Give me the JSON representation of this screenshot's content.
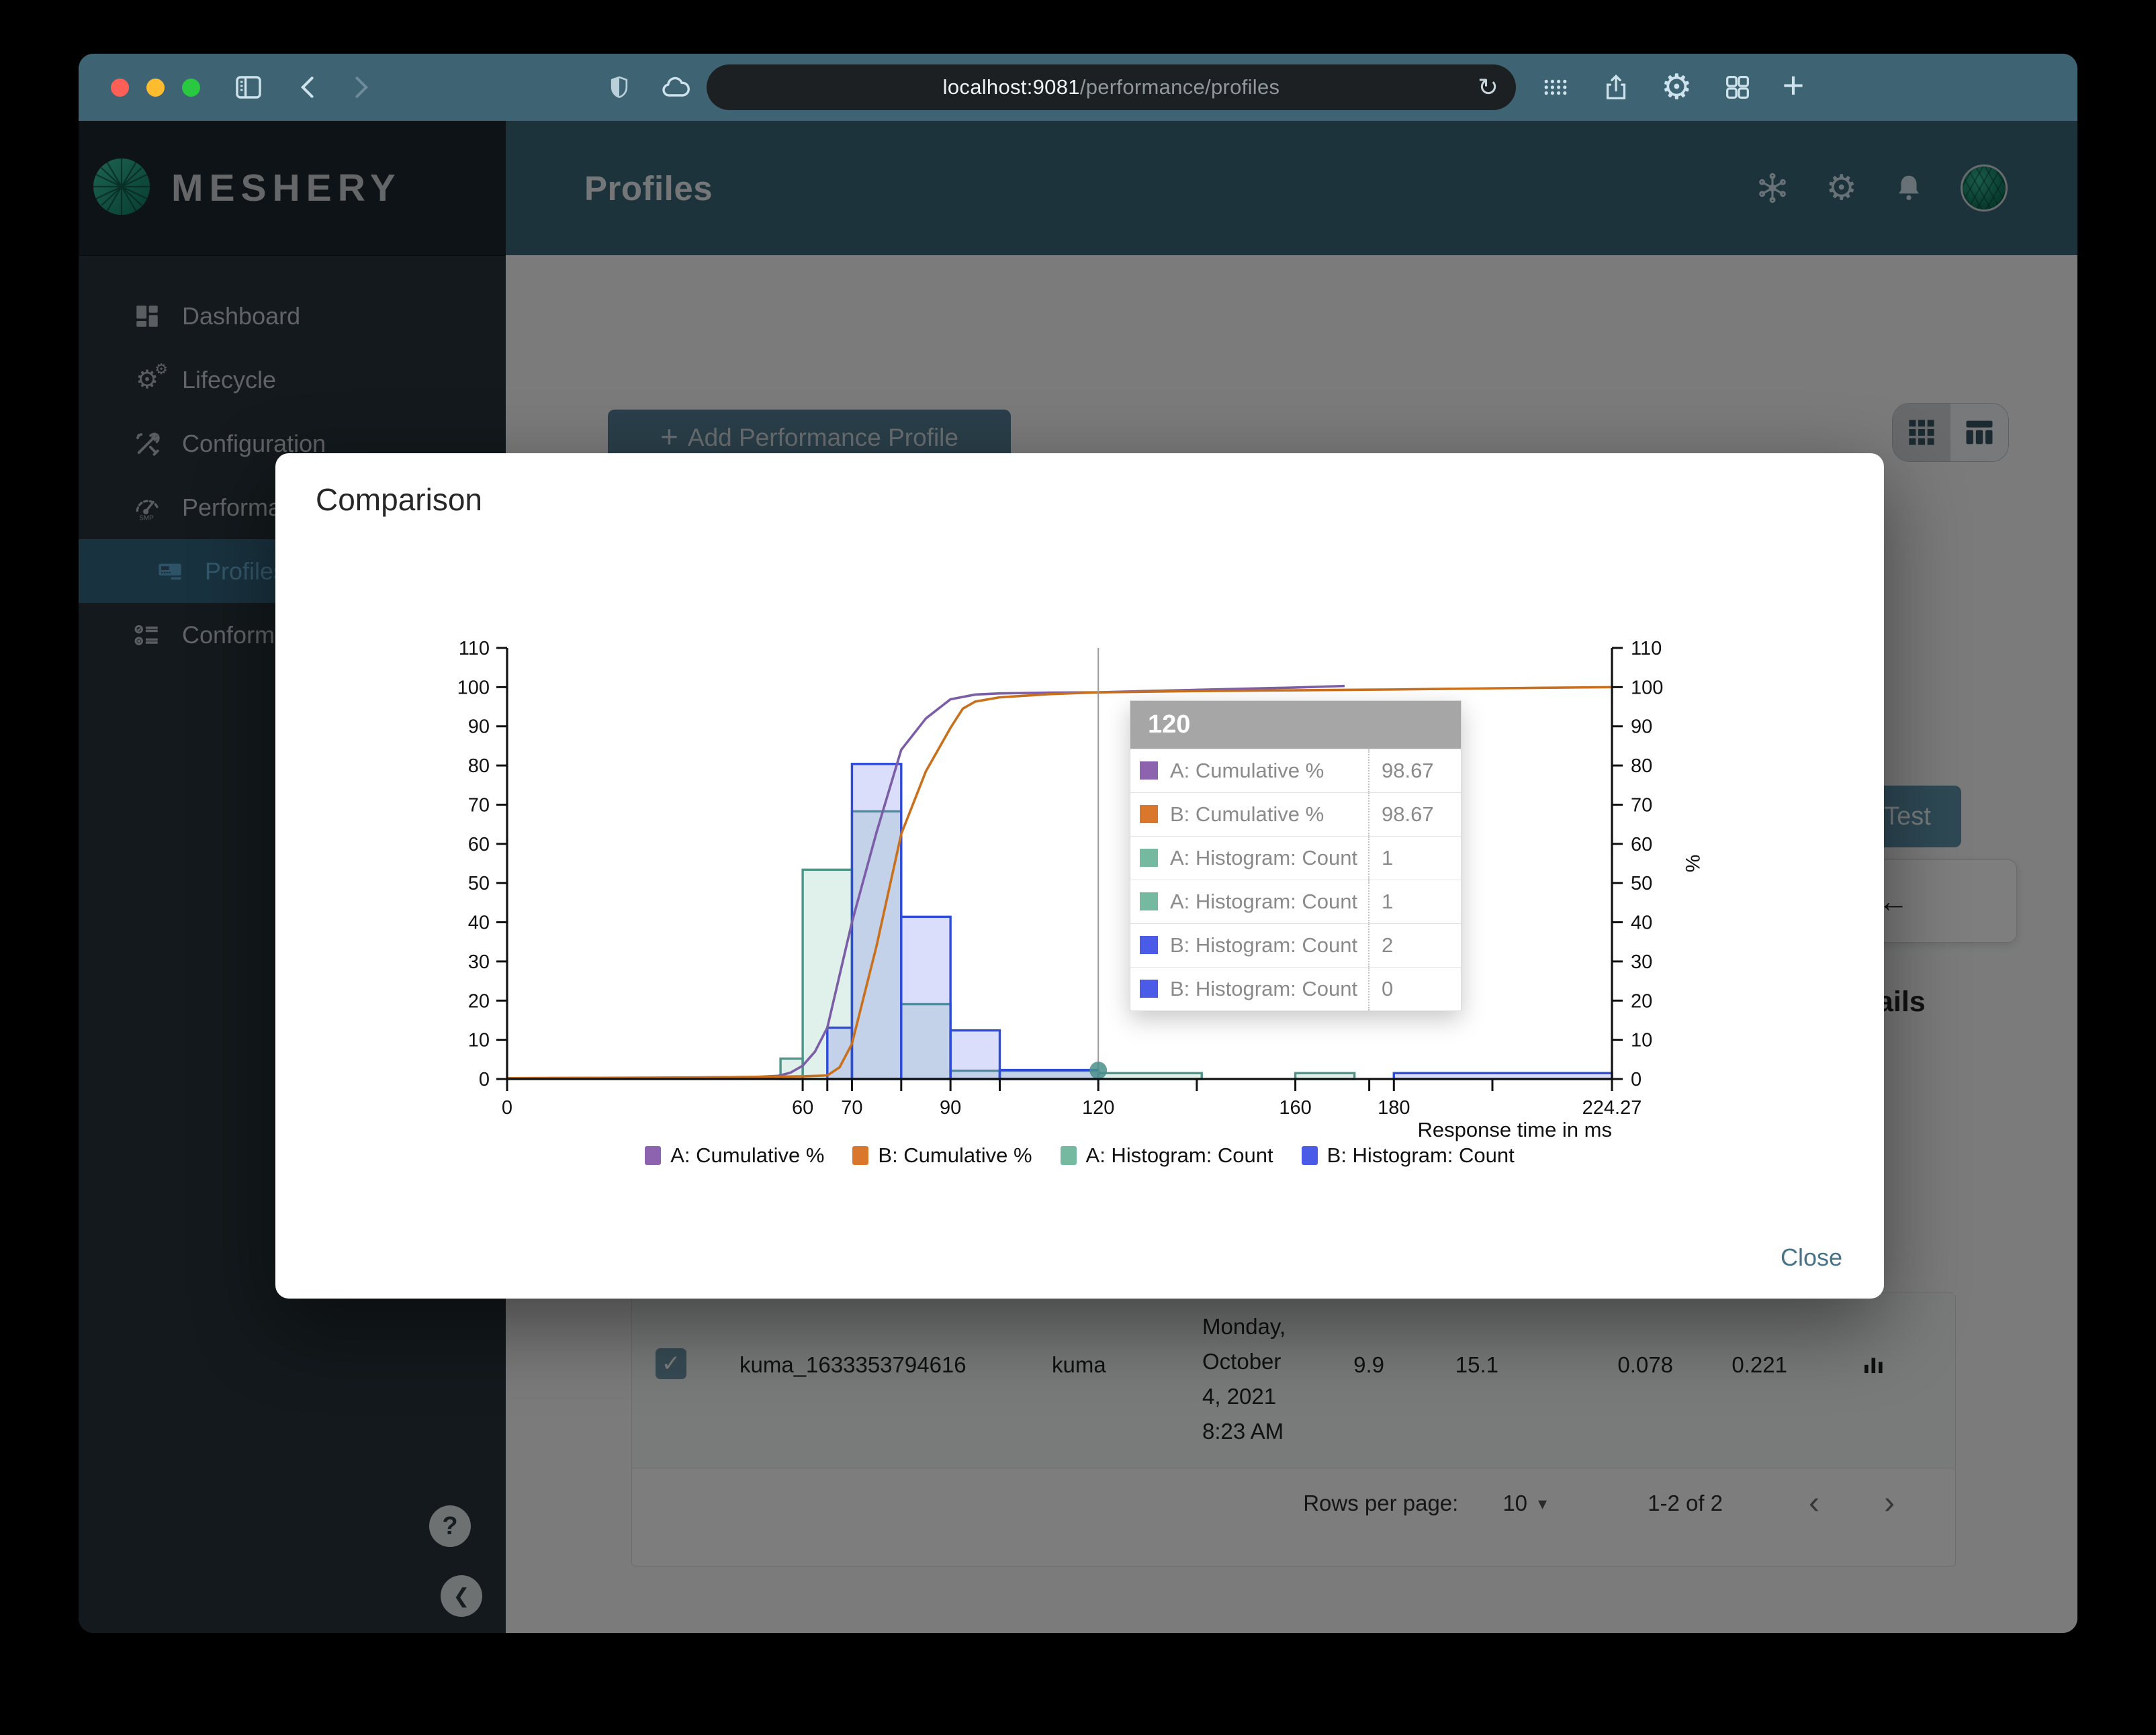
{
  "browser": {
    "url_host": "localhost:9081",
    "url_path": "/performance/profiles"
  },
  "sidebar": {
    "brand": "MESHERY",
    "items": [
      {
        "label": "Dashboard",
        "icon": "dashboard-icon",
        "active": false,
        "indent": false
      },
      {
        "label": "Lifecycle",
        "icon": "lifecycle-icon",
        "active": false,
        "indent": false
      },
      {
        "label": "Configuration",
        "icon": "configuration-icon",
        "active": false,
        "indent": false
      },
      {
        "label": "Performance",
        "icon": "performance-icon",
        "active": false,
        "indent": false
      },
      {
        "label": "Profiles",
        "icon": "profiles-icon",
        "active": true,
        "indent": true
      },
      {
        "label": "Conformance",
        "icon": "conformance-icon",
        "active": false,
        "indent": false
      }
    ],
    "help_glyph": "?",
    "collapse_glyph": "❮"
  },
  "header": {
    "title": "Profiles"
  },
  "page": {
    "add_plus": "+",
    "add_profile_button": "Add Performance Profile",
    "test_button": "Test",
    "back_arrow": "←",
    "details_fragment": "ails",
    "table_row": {
      "name": "kuma_1633353794616",
      "mesh": "kuma",
      "date_lines": [
        "Monday,",
        "October",
        "4, 2021",
        "8:23 AM"
      ],
      "qps": "9.9",
      "duration": "15.1",
      "p50": "0.078",
      "p99": "0.221"
    },
    "pagination": {
      "rows_per_page_label": "Rows per page:",
      "rows_per_page_value": "10",
      "caret": "▾",
      "range": "1-2 of 2",
      "prev": "‹",
      "next": "›"
    }
  },
  "modal": {
    "title": "Comparison",
    "close_label": "Close",
    "tooltip": {
      "header": "120",
      "rows": [
        {
          "color": "#8d62ae",
          "label": "A: Cumulative %",
          "value": "98.67"
        },
        {
          "color": "#d9782d",
          "label": "B: Cumulative %",
          "value": "98.67"
        },
        {
          "color": "#74b9a0",
          "label": "A: Histogram: Count",
          "value": "1"
        },
        {
          "color": "#74b9a0",
          "label": "A: Histogram: Count",
          "value": "1"
        },
        {
          "color": "#4a5be8",
          "label": "B: Histogram: Count",
          "value": "2"
        },
        {
          "color": "#4a5be8",
          "label": "B: Histogram: Count",
          "value": "0"
        }
      ]
    }
  },
  "chart_data": {
    "type": "histogram+cumulative-line",
    "xlabel": "Response time in ms",
    "right_axis_label": "%",
    "xlim": [
      0,
      224.27
    ],
    "ylim": [
      0,
      110
    ],
    "y_ticks": [
      0,
      10,
      20,
      30,
      40,
      50,
      60,
      70,
      80,
      90,
      100,
      110
    ],
    "x_ticks": [
      {
        "v": 0,
        "label": "0"
      },
      {
        "v": 60,
        "label": "60"
      },
      {
        "v": 70,
        "label": "70"
      },
      {
        "v": 90,
        "label": "90"
      },
      {
        "v": 120,
        "label": "120"
      },
      {
        "v": 160,
        "label": "160"
      },
      {
        "v": 180,
        "label": "180"
      },
      {
        "v": 224.27,
        "label": "224.27"
      }
    ],
    "x_minor_ticks": [
      65,
      80,
      100,
      140,
      175,
      200
    ],
    "crosshair_x": 120,
    "marker": {
      "x": 120,
      "y": 2.2,
      "color": "#4a8f8c"
    },
    "series": [
      {
        "name": "A: Histogram: Count",
        "type": "bars",
        "stroke": "#4e9489",
        "fill": "#74b9a0",
        "bars": [
          [
            55.5,
            60,
            5.2
          ],
          [
            60,
            70,
            53.4
          ],
          [
            70,
            80,
            68.3
          ],
          [
            80,
            90,
            19.1
          ],
          [
            90,
            100,
            2.1
          ],
          [
            100,
            120,
            2.1
          ],
          [
            120,
            141,
            1.5
          ],
          [
            160,
            172,
            1.5
          ]
        ]
      },
      {
        "name": "B: Histogram: Count",
        "type": "bars",
        "stroke": "#2e4cd8",
        "fill": "#5b6ae8",
        "bars": [
          [
            65,
            70,
            13.1
          ],
          [
            70,
            80,
            80.4
          ],
          [
            80,
            90,
            41.4
          ],
          [
            90,
            100,
            12.4
          ],
          [
            100,
            120,
            2.3
          ],
          [
            180,
            224.27,
            1.5
          ]
        ]
      },
      {
        "name": "A: Cumulative %",
        "type": "line",
        "color": "#7b5ea7",
        "points": [
          [
            0,
            0.2
          ],
          [
            30,
            0.3
          ],
          [
            50,
            0.5
          ],
          [
            55,
            0.8
          ],
          [
            57.5,
            1.6
          ],
          [
            60,
            3.4
          ],
          [
            62.5,
            7
          ],
          [
            65,
            13.1
          ],
          [
            70,
            40
          ],
          [
            75,
            63
          ],
          [
            80,
            84
          ],
          [
            85,
            92
          ],
          [
            90,
            96.9
          ],
          [
            95,
            98.1
          ],
          [
            100,
            98.4
          ],
          [
            110,
            98.6
          ],
          [
            120,
            98.67
          ],
          [
            130,
            99
          ],
          [
            140,
            99.3
          ],
          [
            150,
            99.6
          ],
          [
            160,
            99.9
          ],
          [
            170,
            100.3
          ]
        ]
      },
      {
        "name": "B: Cumulative %",
        "type": "line",
        "color": "#c9701d",
        "points": [
          [
            0,
            0.2
          ],
          [
            40,
            0.4
          ],
          [
            55,
            0.6
          ],
          [
            60,
            0.7
          ],
          [
            65,
            0.9
          ],
          [
            67.5,
            3
          ],
          [
            70,
            9
          ],
          [
            75,
            34
          ],
          [
            80,
            62.5
          ],
          [
            85,
            78.5
          ],
          [
            90,
            89.6
          ],
          [
            92.5,
            94.5
          ],
          [
            95,
            96.3
          ],
          [
            100,
            97.4
          ],
          [
            110,
            98.2
          ],
          [
            120,
            98.67
          ],
          [
            140,
            99
          ],
          [
            160,
            99.2
          ],
          [
            180,
            99.4
          ],
          [
            200,
            99.7
          ],
          [
            224.27,
            100
          ]
        ]
      }
    ],
    "legend": [
      {
        "label": "A: Cumulative %",
        "color": "#8d62ae"
      },
      {
        "label": "B: Cumulative %",
        "color": "#d9782d"
      },
      {
        "label": "A: Histogram: Count",
        "color": "#74b9a0"
      },
      {
        "label": "B: Histogram: Count",
        "color": "#4a5be8"
      }
    ]
  }
}
